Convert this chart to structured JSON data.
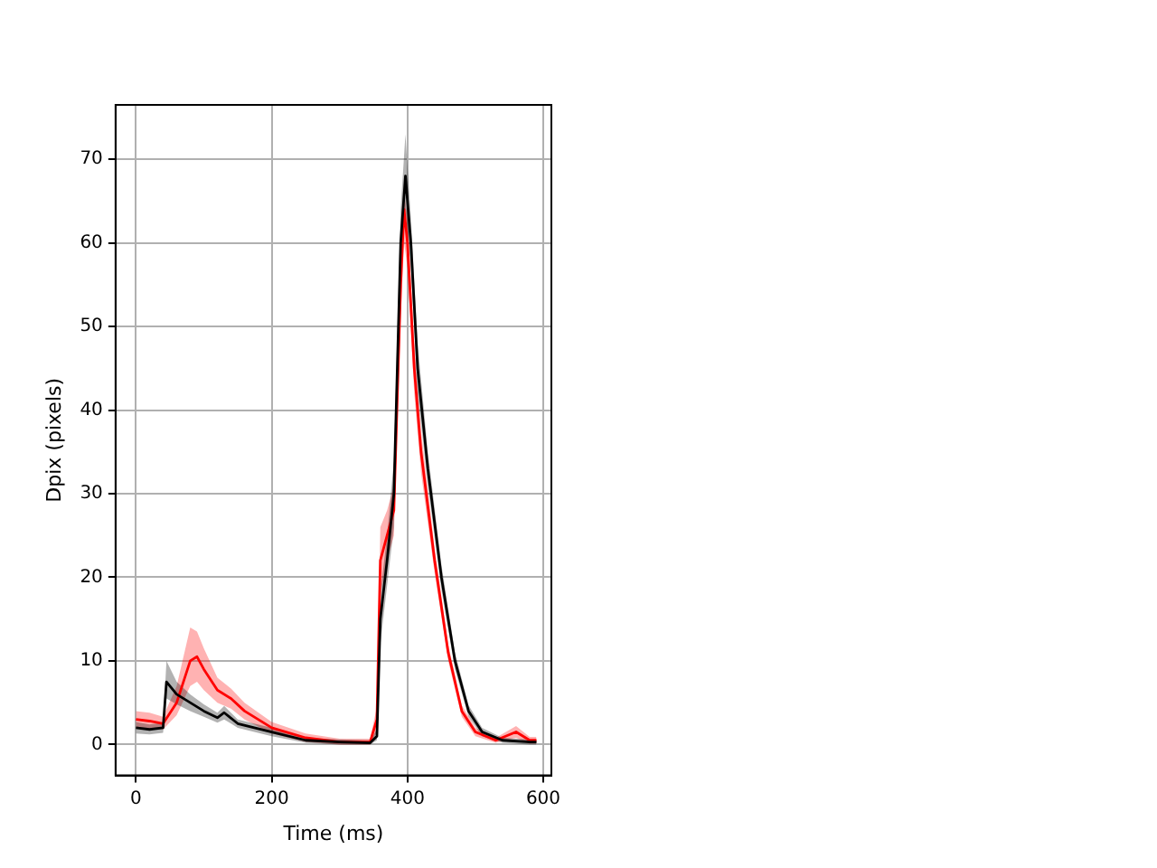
{
  "chart_data": {
    "type": "line",
    "xlabel": "Time (ms)",
    "ylabel": "Dpix (pixels)",
    "xlim": [
      -30,
      612
    ],
    "ylim": [
      -3.7,
      76.5
    ],
    "xticks": [
      0,
      200,
      400,
      600
    ],
    "yticks": [
      0,
      10,
      20,
      30,
      40,
      50,
      60,
      70
    ],
    "grid": true,
    "legend": false,
    "series": [
      {
        "color": "#000000",
        "x": [
          0,
          20,
          40,
          45,
          60,
          80,
          100,
          120,
          130,
          150,
          200,
          250,
          300,
          345,
          355,
          360,
          370,
          380,
          390,
          397,
          405,
          415,
          430,
          450,
          470,
          490,
          510,
          540,
          580,
          590
        ],
        "values": [
          2,
          1.8,
          2,
          7.5,
          6,
          5,
          4,
          3.2,
          3.8,
          2.5,
          1.5,
          0.5,
          0.3,
          0.2,
          1,
          15,
          22,
          30,
          60,
          68,
          60,
          45,
          33,
          20,
          10,
          4,
          1.5,
          0.5,
          0.3,
          0.3
        ],
        "lower": [
          1.3,
          1.2,
          1.4,
          5.5,
          4.8,
          4,
          3.3,
          2.6,
          3,
          2,
          1,
          0.2,
          0,
          0,
          0.5,
          12,
          19,
          26,
          56,
          64,
          57,
          42,
          31,
          18.5,
          9,
          3.3,
          1,
          0.2,
          0,
          0
        ],
        "upper": [
          2.7,
          2.4,
          2.6,
          10,
          7.5,
          6,
          4.8,
          3.8,
          4.6,
          3,
          2,
          0.8,
          0.6,
          0.5,
          1.8,
          18,
          25,
          34,
          64,
          73,
          63,
          48,
          35,
          21.5,
          11,
          4.7,
          2,
          0.8,
          0.6,
          0.6
        ]
      },
      {
        "color": "#ff0000",
        "x": [
          0,
          20,
          40,
          60,
          80,
          90,
          100,
          120,
          140,
          160,
          200,
          250,
          300,
          345,
          355,
          360,
          370,
          380,
          390,
          395,
          400,
          410,
          420,
          440,
          460,
          480,
          500,
          530,
          560,
          580,
          590
        ],
        "values": [
          3,
          2.8,
          2.5,
          5,
          10,
          10.5,
          9,
          6.5,
          5.5,
          4,
          2,
          0.8,
          0.3,
          0.3,
          3,
          22,
          25,
          28,
          55,
          64,
          60,
          45,
          35,
          22,
          11,
          4,
          1.5,
          0.5,
          1.5,
          0.5,
          0.5
        ],
        "lower": [
          2,
          1.8,
          1.8,
          3.5,
          7,
          7.5,
          6.5,
          5,
          4.3,
          3,
          1.3,
          0.3,
          0,
          0,
          1.5,
          18,
          22,
          25,
          51,
          60,
          57,
          42,
          32.5,
          20.5,
          10,
          3.3,
          1,
          0.2,
          0.8,
          0.1,
          0.1
        ],
        "upper": [
          4,
          3.8,
          3.3,
          7,
          14,
          13.5,
          11.5,
          8,
          6.7,
          5,
          2.7,
          1.3,
          0.7,
          0.7,
          4.5,
          26,
          28,
          31,
          59,
          66,
          63,
          48,
          37.5,
          23.5,
          12,
          4.7,
          2,
          0.8,
          2.2,
          0.9,
          0.9
        ]
      }
    ]
  }
}
